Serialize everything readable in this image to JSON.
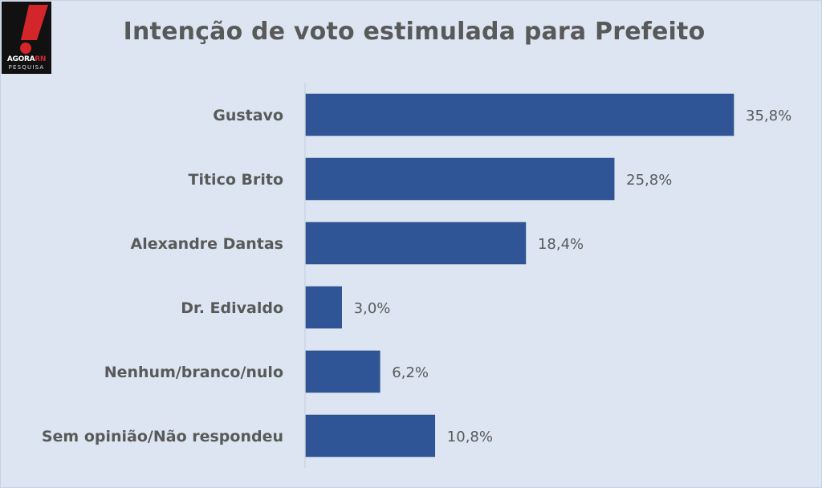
{
  "logo": {
    "brand_prefix": "AGORA",
    "brand_suffix": "RN",
    "subtitle": "PESQUISA",
    "accent_color": "#d3262b"
  },
  "chart_data": {
    "type": "bar",
    "orientation": "horizontal",
    "title": "Intenção de voto estimulada para Prefeito",
    "categories": [
      "Gustavo",
      "Titico Brito",
      "Alexandre Dantas",
      "Dr. Edivaldo",
      "Nenhum/branco/nulo",
      "Sem opinião/Não respondeu"
    ],
    "values": [
      35.8,
      25.8,
      18.4,
      3.0,
      6.2,
      10.8
    ],
    "data_labels": [
      "35,8%",
      "25,8%",
      "18,4%",
      "3,0%",
      "6,2%",
      "10,8%"
    ],
    "unit": "%",
    "xlim": [
      0,
      36
    ],
    "bar_color": "#2f5597",
    "grid": false,
    "legend": "none"
  }
}
